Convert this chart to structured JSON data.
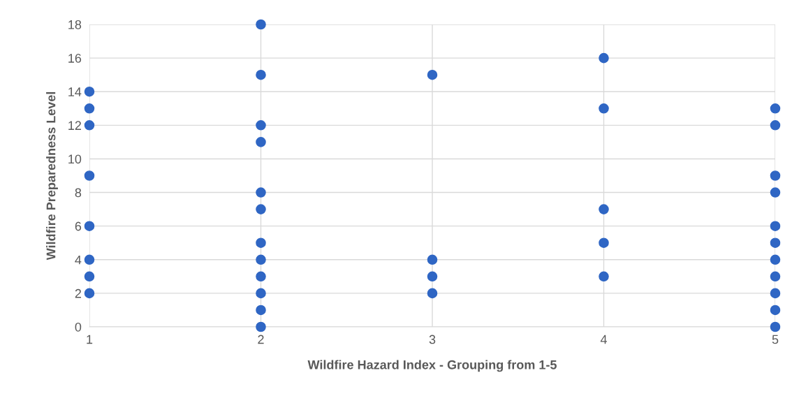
{
  "chart_data": {
    "type": "scatter",
    "xlabel": "Wildfire Hazard Index - Grouping from 1-5",
    "ylabel": "Wildfire Preparedness Level",
    "xlim": [
      1,
      5
    ],
    "xticks": [
      1,
      2,
      3,
      4,
      5
    ],
    "ylim": [
      0,
      18
    ],
    "yticks": [
      0,
      2,
      4,
      6,
      8,
      10,
      12,
      14,
      16,
      18
    ],
    "grid": true,
    "marker": "circle",
    "series": [
      {
        "color": "#2f66c4",
        "x": [
          1,
          1,
          1,
          1,
          1,
          1,
          1,
          1,
          2,
          2,
          2,
          2,
          2,
          2,
          2,
          2,
          2,
          2,
          2,
          2,
          3,
          3,
          3,
          3,
          4,
          4,
          4,
          4,
          4,
          5,
          5,
          5,
          5,
          5,
          5,
          5,
          5,
          5,
          5,
          5
        ],
        "values": [
          14,
          13,
          12,
          9,
          6,
          4,
          3,
          2,
          18,
          15,
          12,
          11,
          8,
          7,
          5,
          4,
          3,
          2,
          1,
          0,
          15,
          4,
          3,
          2,
          16,
          13,
          7,
          5,
          3,
          13,
          12,
          9,
          8,
          6,
          5,
          4,
          3,
          2,
          1,
          0
        ]
      }
    ]
  }
}
